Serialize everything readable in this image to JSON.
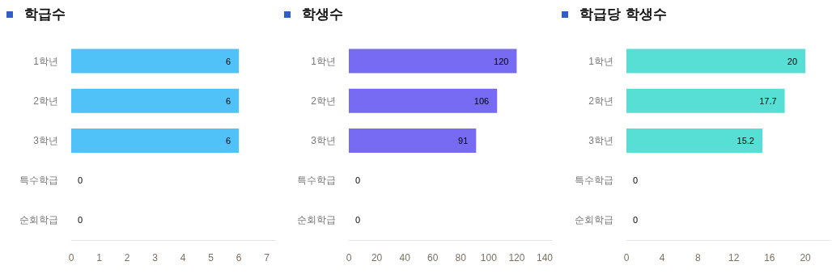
{
  "chart_data": [
    {
      "type": "bar",
      "orientation": "horizontal",
      "title": "학급수",
      "categories": [
        "1학년",
        "2학년",
        "3학년",
        "특수학급",
        "순회학급"
      ],
      "values": [
        6,
        6,
        6,
        0,
        0
      ],
      "color": "#50c2f8",
      "xlim": [
        0,
        7.3
      ],
      "xticks": [
        0,
        1,
        2,
        3,
        4,
        5,
        6,
        7
      ],
      "data_labels": true,
      "grid": false
    },
    {
      "type": "bar",
      "orientation": "horizontal",
      "title": "학생수",
      "categories": [
        "1학년",
        "2학년",
        "3학년",
        "특수학급",
        "순회학급"
      ],
      "values": [
        120,
        106,
        91,
        0,
        0
      ],
      "color": "#766bf2",
      "xlim": [
        0,
        145
      ],
      "xticks": [
        0,
        20,
        40,
        60,
        80,
        100,
        120,
        140
      ],
      "data_labels": true,
      "grid": false
    },
    {
      "type": "bar",
      "orientation": "horizontal",
      "title": "학급당 학생수",
      "categories": [
        "1학년",
        "2학년",
        "3학년",
        "특수학급",
        "순회학급"
      ],
      "values": [
        20,
        17.7,
        15.2,
        0,
        0
      ],
      "color": "#58dfd5",
      "xlim": [
        0,
        22.8
      ],
      "xticks": [
        0,
        4,
        8,
        12,
        16,
        20
      ],
      "data_labels": true,
      "grid": false
    }
  ]
}
